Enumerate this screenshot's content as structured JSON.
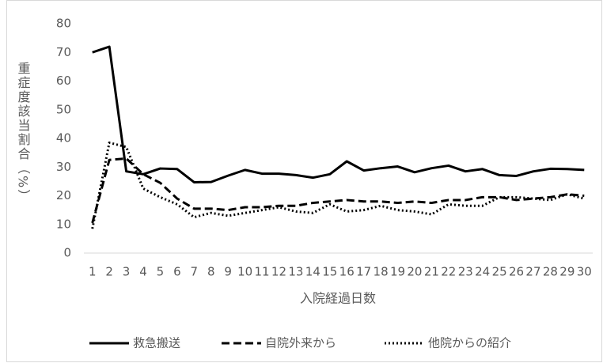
{
  "chart_data": {
    "type": "line",
    "y_label": "重症度該当割合（%）",
    "x_label": "入院経過日数",
    "categories": [
      "1",
      "2",
      "3",
      "4",
      "5",
      "6",
      "7",
      "8",
      "9",
      "10",
      "11",
      "12",
      "13",
      "14",
      "15",
      "16",
      "17",
      "18",
      "19",
      "20",
      "21",
      "22",
      "23",
      "24",
      "25",
      "26",
      "27",
      "28",
      "29",
      "30"
    ],
    "series": [
      {
        "name": "救急搬送",
        "color": "#000000",
        "line_style": "solid",
        "values": [
          70,
          72,
          28.5,
          27.5,
          29.5,
          29.3,
          24.7,
          24.8,
          27,
          29,
          27.7,
          27.7,
          27.2,
          26.3,
          27.5,
          32,
          28.8,
          29.6,
          30.2,
          28.2,
          29.6,
          30.5,
          28.5,
          29.3,
          27.2,
          26.9,
          28.5,
          29.4,
          29.3,
          29
        ]
      },
      {
        "name": "自院外来から",
        "color": "#000000",
        "line_style": "dashed",
        "values": [
          10.5,
          32.5,
          33,
          27.5,
          24.5,
          19,
          15.5,
          15.5,
          15,
          16,
          16,
          16.5,
          16.5,
          17.5,
          18,
          18.5,
          18,
          18,
          17.5,
          18,
          17.5,
          18.5,
          18.5,
          19.5,
          19.5,
          18.5,
          19,
          19.5,
          20.5,
          20
        ]
      },
      {
        "name": "他院からの紹介",
        "color": "#000000",
        "line_style": "dotted",
        "values": [
          8.5,
          38.5,
          37,
          22.5,
          19.5,
          17,
          12.5,
          14,
          13,
          14,
          15,
          16,
          14.5,
          14,
          17,
          14.5,
          15,
          16.5,
          15,
          14.5,
          13.5,
          17,
          16.5,
          16.5,
          19.5,
          19.5,
          19,
          18.5,
          20.5,
          19
        ]
      }
    ],
    "ylim": [
      0,
      80
    ],
    "yticks": [
      0,
      10,
      20,
      30,
      40,
      50,
      60,
      70,
      80
    ],
    "grid": false,
    "legend": "bottom"
  }
}
